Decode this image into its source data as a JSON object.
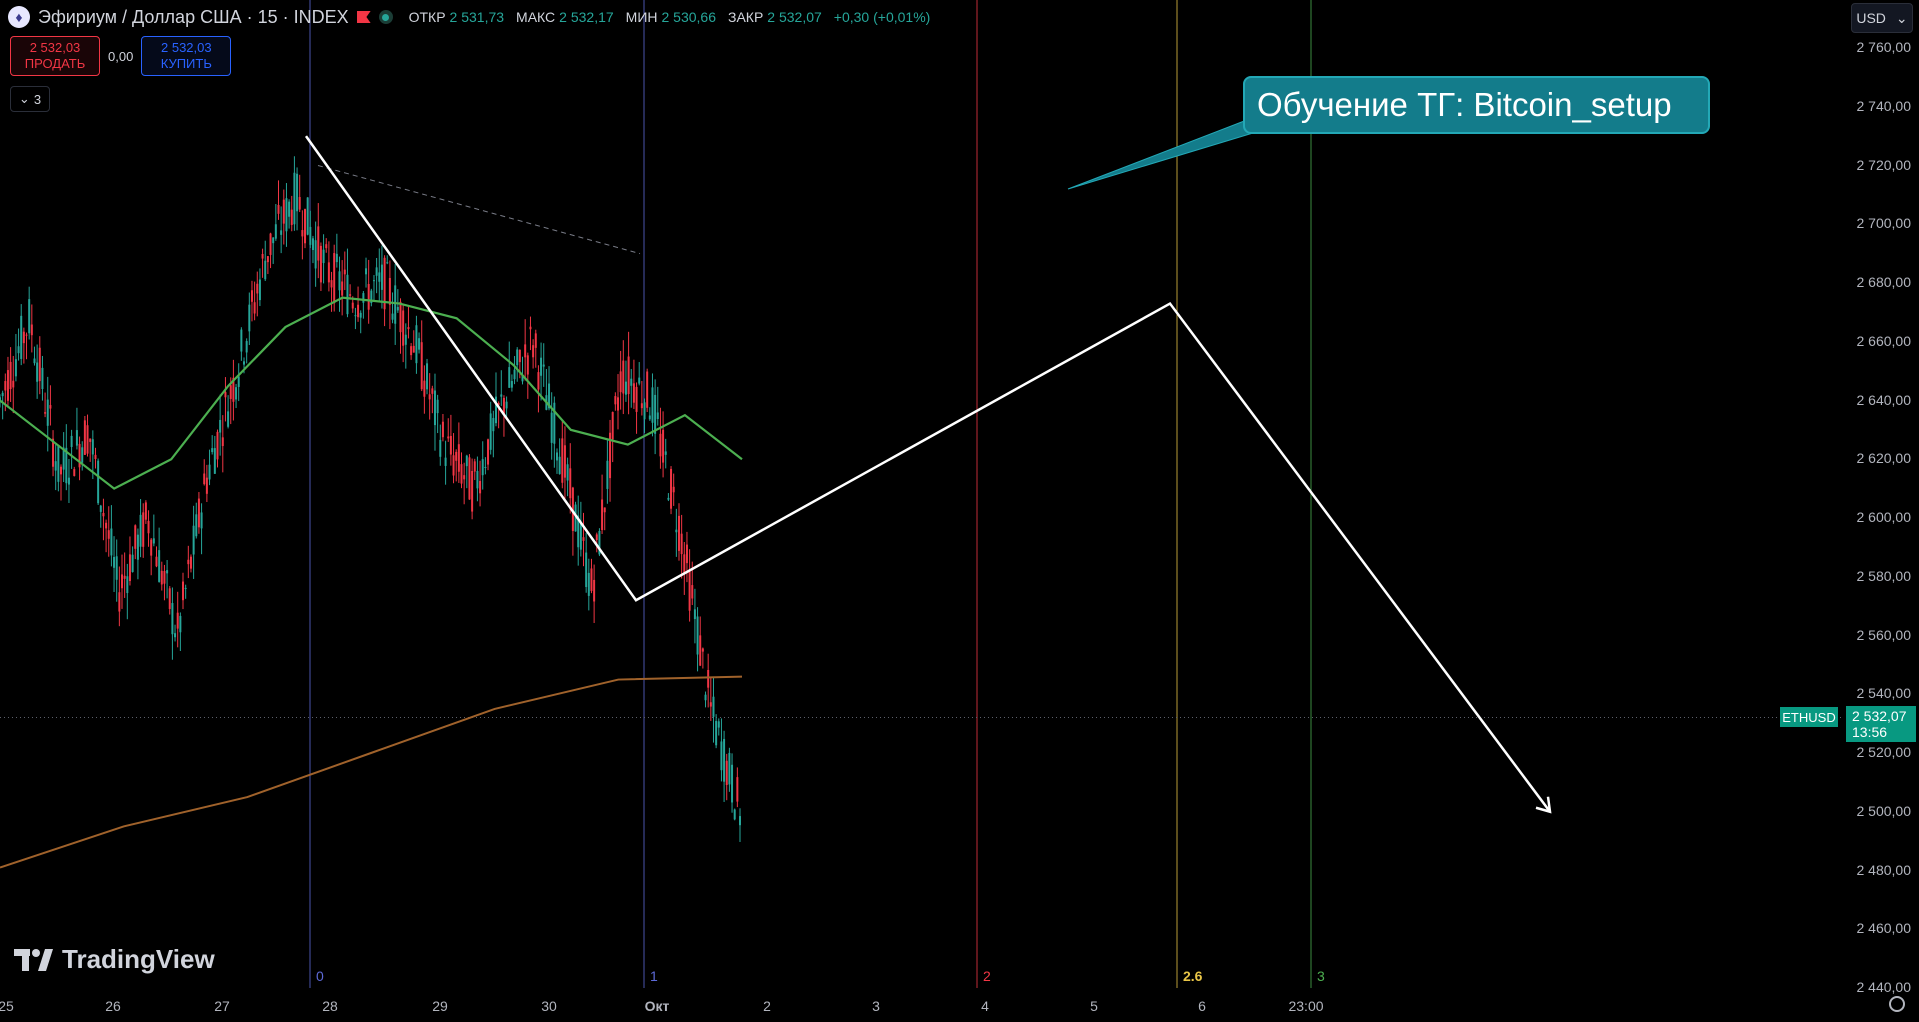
{
  "header": {
    "title": "Эфириум / Доллар США · 15 · INDEX",
    "ohlc": [
      {
        "label": "ОТКР",
        "value": "2 531,73"
      },
      {
        "label": "МАКС",
        "value": "2 532,17"
      },
      {
        "label": "МИН",
        "value": "2 530,66"
      },
      {
        "label": "ЗАКР",
        "value": "2 532,07"
      }
    ],
    "change": "+0,30 (+0,01%)"
  },
  "trade": {
    "sell_price": "2 532,03",
    "sell_label": "ПРОДАТЬ",
    "spread": "0,00",
    "buy_price": "2 532,03",
    "buy_label": "КУПИТЬ"
  },
  "indicator_count": "3",
  "currency": "USD",
  "callout_text": "Обучение ТГ: Bitcoin_setup",
  "branding": "TradingView",
  "price_badge": {
    "symbol": "ETHUSD",
    "price": "2 532,07",
    "countdown": "13:56"
  },
  "colors": {
    "up": "#26a69a",
    "down": "#f23645",
    "sma_fast": "#4caf50",
    "sma_slow": "#a0622b",
    "callout_bg": "#137c8b"
  },
  "icons": {
    "logo": "eth-icon",
    "flag": "flag-icon",
    "status": "status-dot-icon",
    "settings": "settings-icon",
    "collapse": "chevron-down-icon"
  },
  "chart_data": {
    "type": "line",
    "symbol": "ETHUSD",
    "yticks": [
      "2 760,00",
      "2 740,00",
      "2 720,00",
      "2 700,00",
      "2 680,00",
      "2 660,00",
      "2 640,00",
      "2 620,00",
      "2 600,00",
      "2 580,00",
      "2 560,00",
      "2 540,00",
      "2 520,00",
      "2 500,00",
      "2 480,00",
      "2 460,00",
      "2 440,00"
    ],
    "ylim": [
      2436,
      2770
    ],
    "xticks": [
      "25",
      "26",
      "27",
      "28",
      "29",
      "30",
      "Окт",
      "2",
      "3",
      "4",
      "5",
      "6",
      "23:00"
    ],
    "price_series": [
      2640,
      2668,
      2615,
      2630,
      2575,
      2600,
      2560,
      2615,
      2650,
      2690,
      2710,
      2685,
      2675,
      2680,
      2660,
      2625,
      2610,
      2640,
      2660,
      2620,
      2575,
      2650,
      2640,
      2595,
      2535,
      2500
    ],
    "sma_fast": [
      2640,
      2625,
      2610,
      2620,
      2645,
      2665,
      2675,
      2673,
      2668,
      2652,
      2630,
      2625,
      2635,
      2620
    ],
    "sma_slow": [
      2481,
      2495,
      2505,
      2520,
      2535,
      2545,
      2546
    ],
    "fib_levels": [
      {
        "label": "0",
        "color": "#5d6ad8"
      },
      {
        "label": "1",
        "color": "#5d6ad8"
      },
      {
        "label": "2",
        "color": "#f23645"
      },
      {
        "label": "2.6",
        "color": "#e8c547"
      },
      {
        "label": "3",
        "color": "#4caf50"
      }
    ],
    "projection": [
      [
        2730
      ],
      [
        2572
      ],
      [
        2673
      ],
      [
        2500
      ]
    ],
    "current_price": 2532.07
  }
}
